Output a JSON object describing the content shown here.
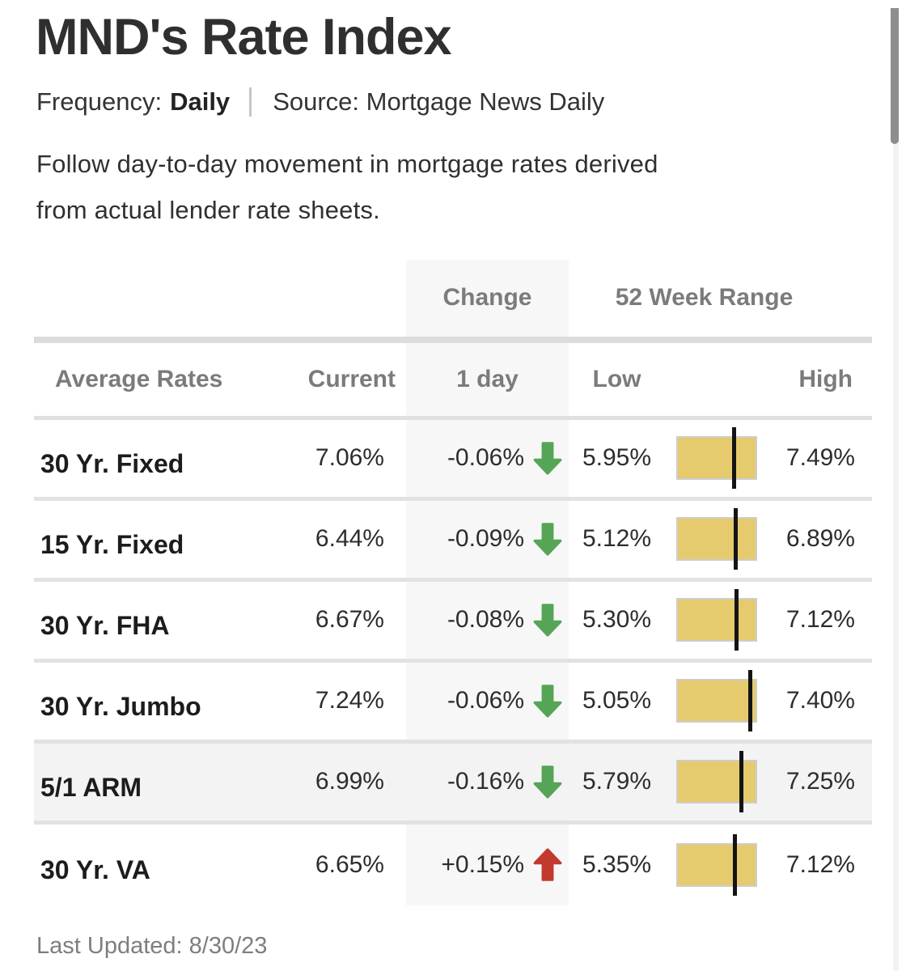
{
  "page": {
    "title": "MND's Rate Index",
    "frequency_label": "Frequency:",
    "frequency_value": "Daily",
    "source_text": "Source: Mortgage News Daily",
    "description": "Follow day-to-day movement in mortgage rates derived\nfrom actual lender rate sheets.",
    "last_updated": "Last Updated: 8/30/23"
  },
  "table": {
    "group_headers": {
      "change": "Change",
      "range": "52 Week Range"
    },
    "column_headers": {
      "label": "Average Rates",
      "current": "Current",
      "change": "1 day",
      "low": "Low",
      "high": "High"
    },
    "rows": [
      {
        "label": "30 Yr. Fixed",
        "current": "7.06%",
        "change": "-0.06%",
        "direction": "down",
        "low": "5.95%",
        "high": "7.49%",
        "highlighted": false
      },
      {
        "label": "15 Yr. Fixed",
        "current": "6.44%",
        "change": "-0.09%",
        "direction": "down",
        "low": "5.12%",
        "high": "6.89%",
        "highlighted": false
      },
      {
        "label": "30 Yr. FHA",
        "current": "6.67%",
        "change": "-0.08%",
        "direction": "down",
        "low": "5.30%",
        "high": "7.12%",
        "highlighted": false
      },
      {
        "label": "30 Yr. Jumbo",
        "current": "7.24%",
        "change": "-0.06%",
        "direction": "down",
        "low": "5.05%",
        "high": "7.40%",
        "highlighted": false
      },
      {
        "label": "5/1 ARM",
        "current": "6.99%",
        "change": "-0.16%",
        "direction": "down",
        "low": "5.79%",
        "high": "7.25%",
        "highlighted": true
      },
      {
        "label": "30 Yr. VA",
        "current": "6.65%",
        "change": "+0.15%",
        "direction": "up",
        "low": "5.35%",
        "high": "7.12%",
        "highlighted": false
      }
    ]
  },
  "icons": {
    "down": "thick-down-arrow",
    "up": "thick-up-arrow"
  },
  "colors": {
    "accent_bar": "#e6ca6e",
    "bar_border": "#cdcdcd",
    "arrow_down": "#56a556",
    "arrow_up": "#c13a2d",
    "marker": "#141414"
  }
}
